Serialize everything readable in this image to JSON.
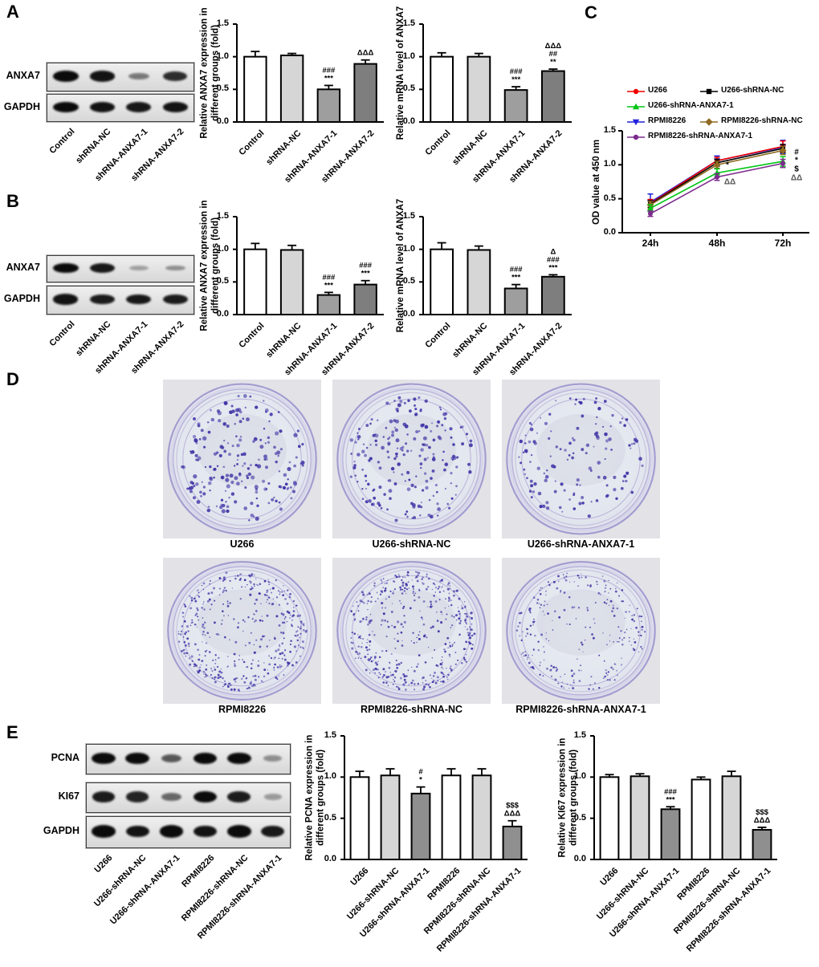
{
  "panelA": {
    "letter": "A",
    "blot": {
      "row_labels": [
        "ANXA7",
        "GAPDH"
      ],
      "lanes": [
        "Control",
        "shRNA-NC",
        "shRNA-ANXA7-1",
        "shRNA-ANXA7-2"
      ],
      "band_intensities": [
        [
          1.0,
          0.95,
          0.35,
          0.8
        ],
        [
          1.0,
          0.95,
          0.92,
          0.95
        ]
      ]
    }
  },
  "panelB": {
    "letter": "B",
    "blot": {
      "row_labels": [
        "ANXA7",
        "GAPDH"
      ],
      "lanes": [
        "Control",
        "shRNA-NC",
        "shRNA-ANXA7-1",
        "shRNA-ANXA7-2"
      ],
      "band_intensities": [
        [
          1.0,
          0.92,
          0.12,
          0.22
        ],
        [
          0.95,
          0.9,
          0.92,
          0.9
        ]
      ]
    }
  },
  "panelC": {
    "letter": "C"
  },
  "panelD": {
    "letter": "D",
    "colony_color": "#4338a8",
    "photo_bg": "#e3e2e7",
    "dishes": [
      {
        "label": "U266",
        "colonies": 205,
        "dot_size": 3.4
      },
      {
        "label": "U266-shRNA-NC",
        "colonies": 215,
        "dot_size": 3.2
      },
      {
        "label": "U266-shRNA-ANXA7-1",
        "colonies": 135,
        "dot_size": 3.0
      },
      {
        "label": "RPMI8226",
        "colonies": 430,
        "dot_size": 2.0
      },
      {
        "label": "RPMI8226-shRNA-NC",
        "colonies": 460,
        "dot_size": 2.0
      },
      {
        "label": "RPMI8226-shRNA-ANXA7-1",
        "colonies": 260,
        "dot_size": 1.9
      }
    ]
  },
  "panelE": {
    "letter": "E",
    "blot": {
      "row_labels": [
        "PCNA",
        "KI67",
        "GAPDH"
      ],
      "lanes": [
        "U266",
        "U266-shRNA-NC",
        "U266-shRNA-ANXA7-1",
        "RPMI8226",
        "RPMI8226-shRNA-NC",
        "RPMI8226-shRNA-ANXA7-1"
      ],
      "band_intensities": [
        [
          1.0,
          1.0,
          0.55,
          1.0,
          1.0,
          0.22
        ],
        [
          0.9,
          0.85,
          0.45,
          1.0,
          0.9,
          0.15
        ],
        [
          1.0,
          0.95,
          1.0,
          0.95,
          1.0,
          0.92
        ]
      ]
    }
  },
  "chart_data": [
    {
      "id": "a-protein",
      "type": "bar",
      "title": "",
      "ylabel": [
        "Relative ANXA7 expression in",
        "different groups (fold)"
      ],
      "categories": [
        "Control",
        "shRNA-NC",
        "shRNA-ANXA7-1",
        "shRNA-ANXA7-2"
      ],
      "values": [
        1.0,
        1.02,
        0.5,
        0.89
      ],
      "errors": [
        0.08,
        0.03,
        0.06,
        0.06
      ],
      "bar_colors": [
        "#ffffff",
        "#d6d6d6",
        "#9e9e9e",
        "#7e7e7e"
      ],
      "significance": [
        [],
        [],
        [
          "###",
          "***"
        ],
        [
          "ΔΔΔ"
        ]
      ],
      "ylim": [
        0,
        1.5
      ],
      "yticks": [
        0.0,
        0.5,
        1.0,
        1.5
      ],
      "grid": false
    },
    {
      "id": "a-mrna",
      "type": "bar",
      "title": "",
      "ylabel": [
        "Relative mRNA level of ANXA7"
      ],
      "categories": [
        "Control",
        "shRNA-NC",
        "shRNA-ANXA7-1",
        "shRNA-ANXA7-2"
      ],
      "values": [
        1.0,
        1.0,
        0.49,
        0.78
      ],
      "errors": [
        0.06,
        0.05,
        0.05,
        0.03
      ],
      "bar_colors": [
        "#ffffff",
        "#d6d6d6",
        "#9e9e9e",
        "#7e7e7e"
      ],
      "significance": [
        [],
        [],
        [
          "###",
          "***"
        ],
        [
          "ΔΔΔ",
          "##",
          "**"
        ]
      ],
      "ylim": [
        0,
        1.5
      ],
      "yticks": [
        0.0,
        0.5,
        1.0,
        1.5
      ],
      "grid": false
    },
    {
      "id": "b-protein",
      "type": "bar",
      "title": "",
      "ylabel": [
        "Relative ANXA7 expression in",
        "different groups (fold)"
      ],
      "categories": [
        "Control",
        "shRNA-NC",
        "shRNA-ANXA7-1",
        "shRNA-ANXA7-2"
      ],
      "values": [
        1.0,
        0.99,
        0.3,
        0.46
      ],
      "errors": [
        0.09,
        0.07,
        0.04,
        0.06
      ],
      "bar_colors": [
        "#ffffff",
        "#d6d6d6",
        "#9e9e9e",
        "#7e7e7e"
      ],
      "significance": [
        [],
        [],
        [
          "###",
          "***"
        ],
        [
          "###",
          "***"
        ]
      ],
      "ylim": [
        0,
        1.5
      ],
      "yticks": [
        0.0,
        0.5,
        1.0,
        1.5
      ],
      "grid": false
    },
    {
      "id": "b-mrna",
      "type": "bar",
      "title": "",
      "ylabel": [
        "Relative mRNA level of ANXA7"
      ],
      "categories": [
        "Control",
        "shRNA-NC",
        "shRNA-ANXA7-1",
        "shRNA-ANXA7-2"
      ],
      "values": [
        1.0,
        0.99,
        0.4,
        0.58
      ],
      "errors": [
        0.1,
        0.06,
        0.06,
        0.03
      ],
      "bar_colors": [
        "#ffffff",
        "#d6d6d6",
        "#9e9e9e",
        "#7e7e7e"
      ],
      "significance": [
        [],
        [],
        [
          "###",
          "***"
        ],
        [
          "Δ",
          "###",
          "***"
        ]
      ],
      "ylim": [
        0,
        1.5
      ],
      "yticks": [
        0.0,
        0.5,
        1.0,
        1.5
      ],
      "grid": false
    },
    {
      "id": "od450",
      "type": "line",
      "title": "",
      "ylabel": [
        "OD value at 450 nm"
      ],
      "x": [
        "24h",
        "48h",
        "72h"
      ],
      "series": [
        {
          "name": "U266",
          "color": "#f10000",
          "marker": "circle",
          "values": [
            0.43,
            1.06,
            1.27
          ],
          "errors": [
            0.06,
            0.05,
            0.08
          ]
        },
        {
          "name": "U266-shRNA-NC",
          "color": "#000000",
          "marker": "square",
          "values": [
            0.42,
            1.03,
            1.24
          ],
          "errors": [
            0.05,
            0.05,
            0.06
          ]
        },
        {
          "name": "U266-shRNA-ANXA7-1",
          "color": "#00c514",
          "marker": "triangle-up",
          "values": [
            0.36,
            0.88,
            1.05
          ],
          "errors": [
            0.05,
            0.06,
            0.07
          ]
        },
        {
          "name": "RPMI8226",
          "color": "#2121de",
          "marker": "triangle-down",
          "values": [
            0.45,
            1.06,
            1.26
          ],
          "errors": [
            0.12,
            0.07,
            0.1
          ]
        },
        {
          "name": "RPMI8226-shRNA-NC",
          "color": "#8f6b22",
          "marker": "diamond",
          "values": [
            0.41,
            1.0,
            1.21
          ],
          "errors": [
            0.05,
            0.05,
            0.06
          ]
        },
        {
          "name": "RPMI8226-shRNA-ANXA7-1",
          "color": "#7d2a8d",
          "marker": "circle",
          "values": [
            0.28,
            0.82,
            1.02
          ],
          "errors": [
            0.04,
            0.05,
            0.06
          ]
        }
      ],
      "annotations": [
        "*",
        "ΔΔ",
        "#",
        "*",
        "$",
        "ΔΔ"
      ],
      "ylim": [
        0,
        1.5
      ],
      "yticks": [
        0.0,
        0.5,
        1.0,
        1.5
      ],
      "grid": false,
      "legend_position": "top-inside"
    },
    {
      "id": "e-pcna",
      "type": "bar",
      "title": "",
      "ylabel": [
        "Relative PCNA expression in",
        "different groups (fold)"
      ],
      "categories": [
        "U266",
        "U266-shRNA-NC",
        "U266-shRNA-ANXA7-1",
        "RPMI8226",
        "RPMI8226-shRNA-NC",
        "RPMI8226-shRNA-ANXA7-1"
      ],
      "values": [
        1.0,
        1.02,
        0.8,
        1.02,
        1.02,
        0.4
      ],
      "errors": [
        0.07,
        0.08,
        0.08,
        0.08,
        0.08,
        0.07
      ],
      "bar_colors": [
        "#ffffff",
        "#d6d6d6",
        "#8f8f8f",
        "#ffffff",
        "#d6d6d6",
        "#8f8f8f"
      ],
      "significance": [
        [],
        [],
        [
          "#",
          "*"
        ],
        [],
        [],
        [
          "$$$",
          "ΔΔΔ"
        ]
      ],
      "ylim": [
        0,
        1.5
      ],
      "yticks": [
        0.0,
        0.5,
        1.0,
        1.5
      ],
      "grid": false
    },
    {
      "id": "e-ki67",
      "type": "bar",
      "title": "",
      "ylabel": [
        "Relative KI67 expression in",
        "different groups (fold)"
      ],
      "categories": [
        "U266",
        "U266-shRNA-NC",
        "U266-shRNA-ANXA7-1",
        "RPMI8226",
        "RPMI8226-shRNA-NC",
        "RPMI8226-shRNA-ANXA7-1"
      ],
      "values": [
        1.0,
        1.01,
        0.61,
        0.97,
        1.01,
        0.36
      ],
      "errors": [
        0.03,
        0.03,
        0.03,
        0.03,
        0.06,
        0.03
      ],
      "bar_colors": [
        "#ffffff",
        "#d6d6d6",
        "#8f8f8f",
        "#ffffff",
        "#d6d6d6",
        "#8f8f8f"
      ],
      "significance": [
        [],
        [],
        [
          "###",
          "***"
        ],
        [],
        [],
        [
          "$$$",
          "ΔΔΔ"
        ]
      ],
      "ylim": [
        0,
        1.5
      ],
      "yticks": [
        0.0,
        0.5,
        1.0,
        1.5
      ],
      "grid": false
    }
  ]
}
